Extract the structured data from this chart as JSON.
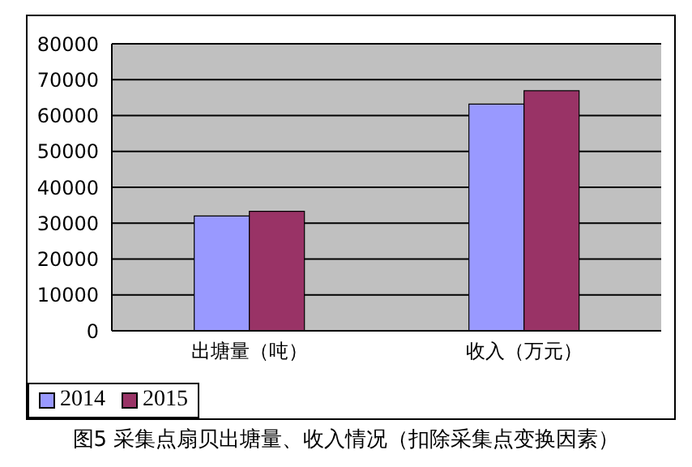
{
  "chart_data": {
    "type": "bar",
    "title": "图5  采集点扇贝出塘量、收入情况（扣除采集点变换因素）",
    "categories": [
      "出塘量（吨）",
      "收入（万元）"
    ],
    "series": [
      {
        "name": "2014",
        "color": "#9999ff",
        "values": [
          32000,
          63200
        ]
      },
      {
        "name": "2015",
        "color": "#993366",
        "values": [
          33300,
          66900
        ]
      }
    ],
    "ylim": [
      0,
      80000
    ],
    "yticks": [
      0,
      10000,
      20000,
      30000,
      40000,
      50000,
      60000,
      70000,
      80000
    ],
    "grid": "y",
    "legend": "bottom"
  }
}
